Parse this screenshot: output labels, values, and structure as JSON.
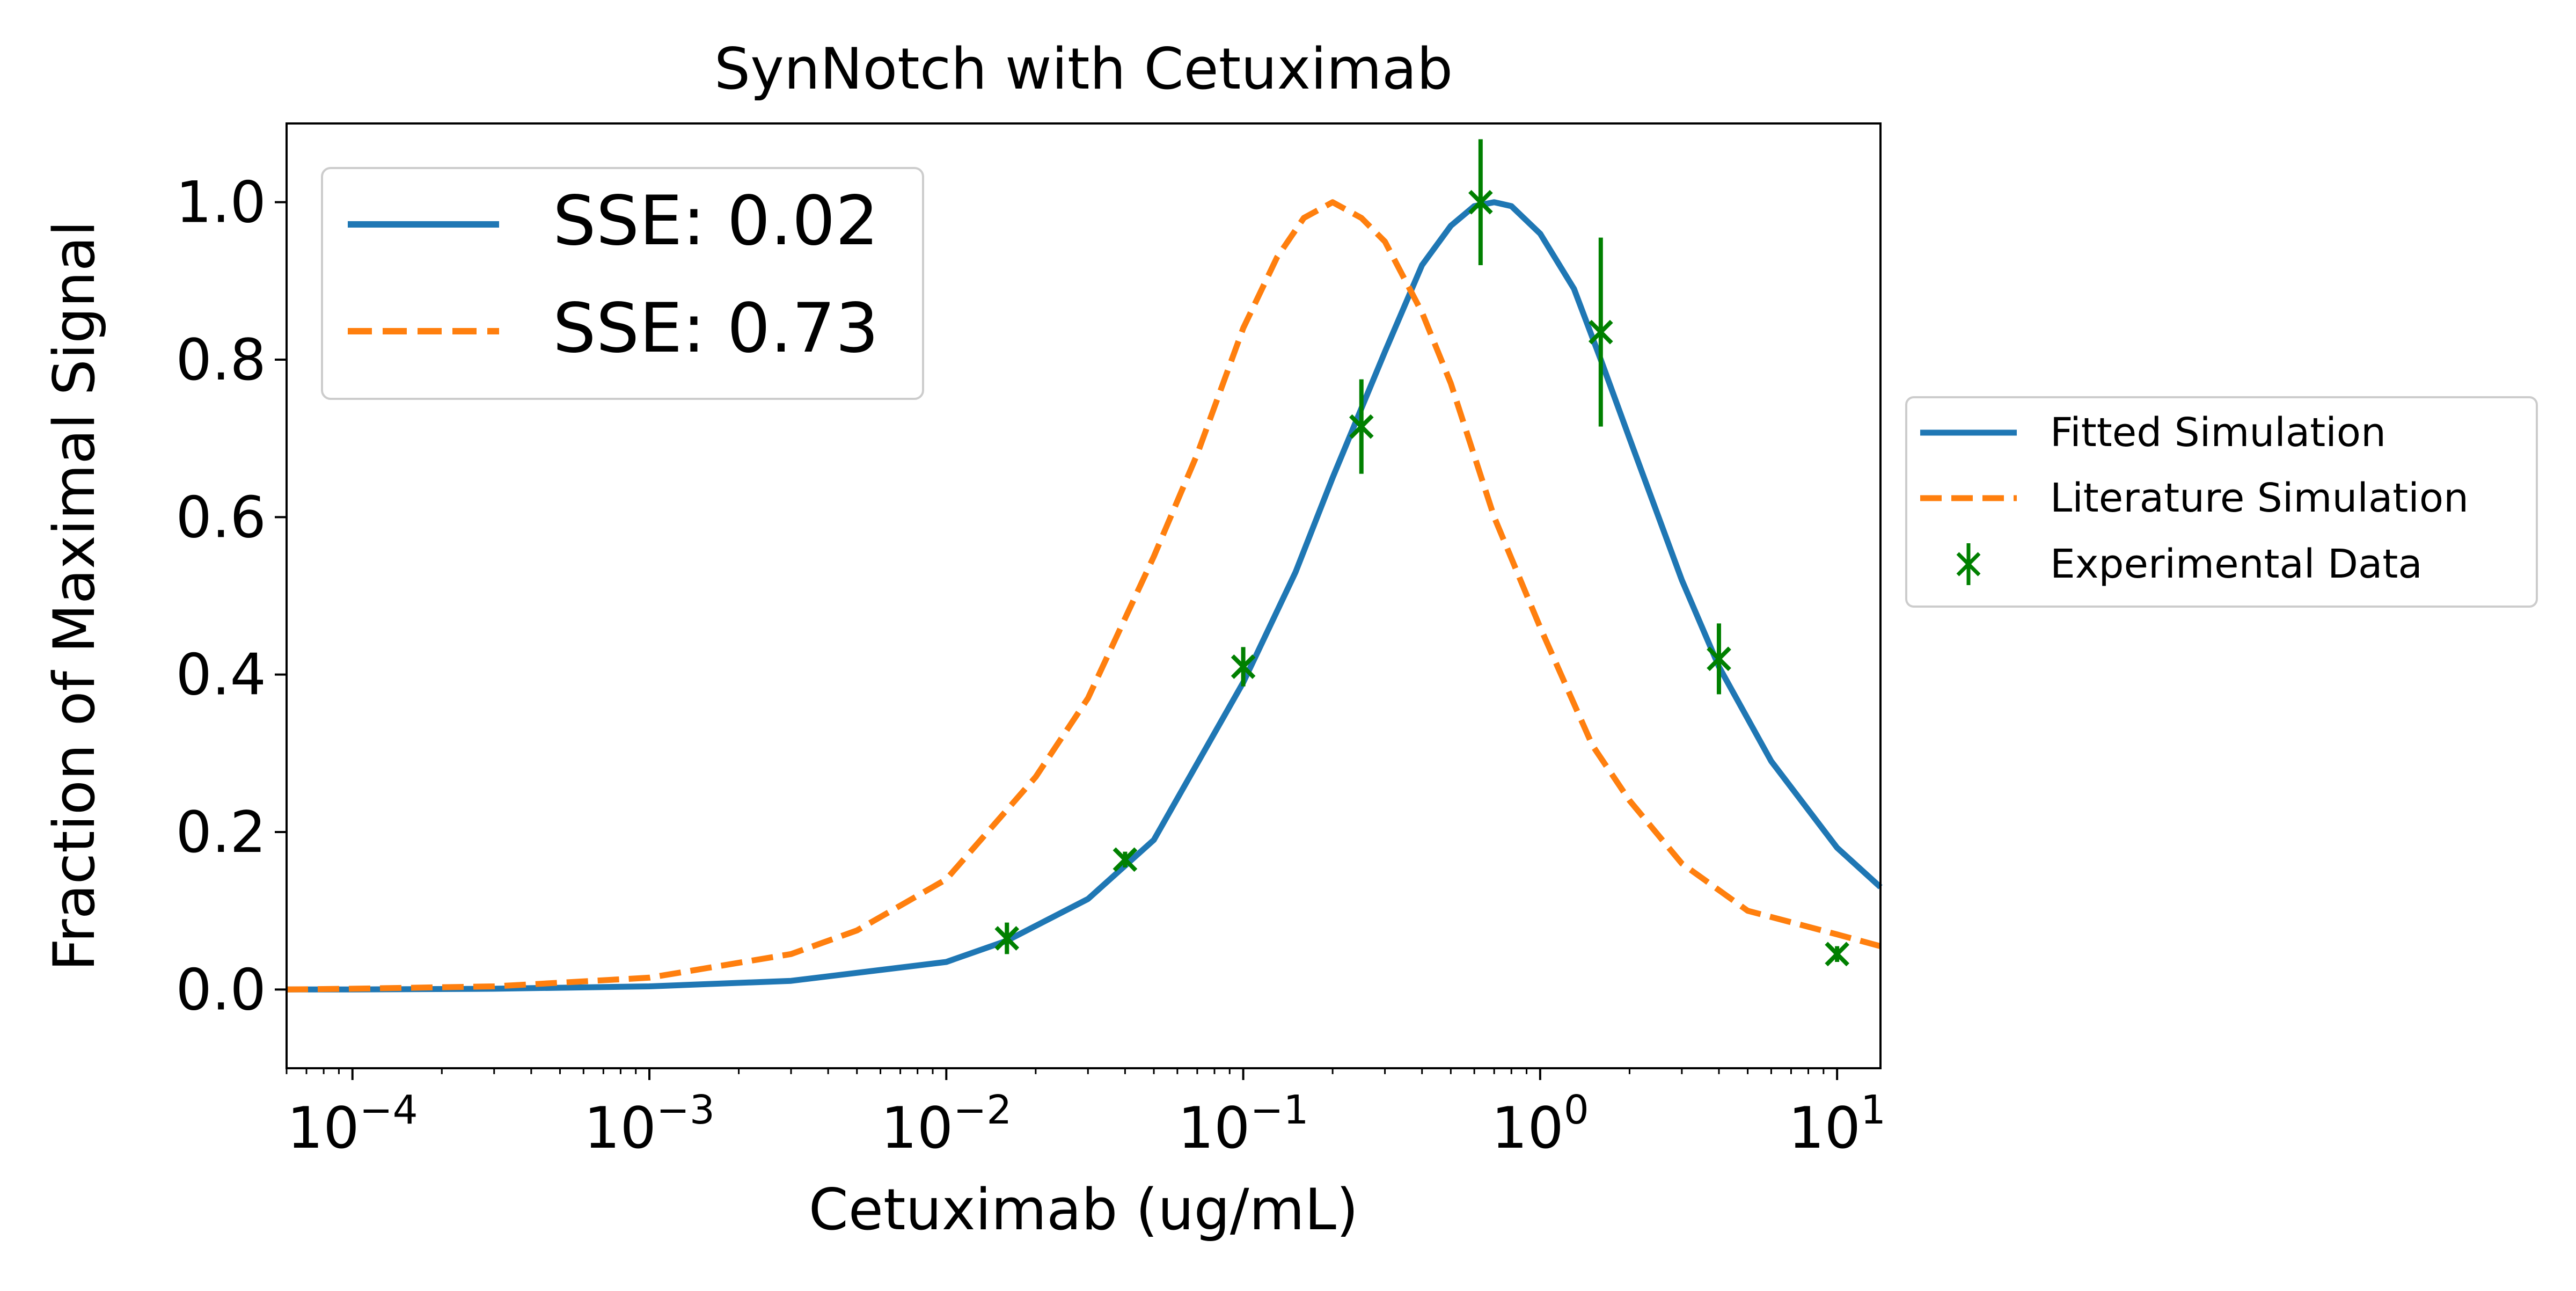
{
  "chart_data": {
    "type": "line",
    "title": "SynNotch with Cetuximab",
    "xlabel": "Cetuximab (ug/mL)",
    "ylabel": "Fraction of Maximal Signal",
    "x_scale": "log",
    "xlim": [
      6e-05,
      14
    ],
    "ylim": [
      -0.1,
      1.1
    ],
    "x_ticks": [
      {
        "value": 0.0001,
        "base": "10",
        "exp": "−4"
      },
      {
        "value": 0.001,
        "base": "10",
        "exp": "−3"
      },
      {
        "value": 0.01,
        "base": "10",
        "exp": "−2"
      },
      {
        "value": 0.1,
        "base": "10",
        "exp": "−1"
      },
      {
        "value": 1,
        "base": "10",
        "exp": "0"
      },
      {
        "value": 10,
        "base": "10",
        "exp": "1"
      }
    ],
    "y_ticks": [
      "0.0",
      "0.2",
      "0.4",
      "0.6",
      "0.8",
      "1.0"
    ],
    "grid": false,
    "series": [
      {
        "name": "Fitted Simulation",
        "style": "solid",
        "color": "#1f77b4",
        "x": [
          6e-05,
          0.0001,
          0.0003,
          0.001,
          0.003,
          0.01,
          0.016,
          0.03,
          0.05,
          0.1,
          0.15,
          0.2,
          0.3,
          0.4,
          0.5,
          0.6,
          0.7,
          0.8,
          1.0,
          1.3,
          1.6,
          2.0,
          3.0,
          4.0,
          6.0,
          10.0,
          14.0
        ],
        "y": [
          0.0,
          0.0,
          0.001,
          0.004,
          0.011,
          0.035,
          0.062,
          0.115,
          0.19,
          0.39,
          0.53,
          0.65,
          0.81,
          0.92,
          0.97,
          0.995,
          1.0,
          0.995,
          0.96,
          0.89,
          0.8,
          0.7,
          0.52,
          0.41,
          0.29,
          0.18,
          0.13
        ]
      },
      {
        "name": "Literature Simulation",
        "style": "dashed",
        "color": "#ff7f0e",
        "x": [
          6e-05,
          0.0001,
          0.0003,
          0.001,
          0.003,
          0.005,
          0.01,
          0.02,
          0.03,
          0.05,
          0.07,
          0.1,
          0.13,
          0.16,
          0.2,
          0.25,
          0.3,
          0.4,
          0.5,
          0.7,
          1.0,
          1.5,
          2.0,
          3.0,
          5.0,
          10.0,
          14.0
        ],
        "y": [
          0.0,
          0.001,
          0.004,
          0.015,
          0.045,
          0.075,
          0.14,
          0.27,
          0.37,
          0.55,
          0.68,
          0.84,
          0.93,
          0.98,
          1.0,
          0.98,
          0.95,
          0.86,
          0.77,
          0.6,
          0.46,
          0.31,
          0.24,
          0.16,
          0.1,
          0.07,
          0.055
        ]
      }
    ],
    "experimental": {
      "name": "Experimental Data",
      "color": "#008000",
      "marker": "x-with-errorbars",
      "points": [
        {
          "x": 0.016,
          "y": 0.065,
          "err": 0.02
        },
        {
          "x": 0.04,
          "y": 0.165,
          "err": 0.01
        },
        {
          "x": 0.1,
          "y": 0.41,
          "err": 0.025
        },
        {
          "x": 0.25,
          "y": 0.715,
          "err": 0.06
        },
        {
          "x": 0.63,
          "y": 1.0,
          "err": 0.08
        },
        {
          "x": 1.6,
          "y": 0.835,
          "err": 0.12
        },
        {
          "x": 4.0,
          "y": 0.42,
          "err": 0.045
        },
        {
          "x": 10.0,
          "y": 0.045,
          "err": 0.01
        }
      ]
    },
    "inner_legend": {
      "placement": "upper-left",
      "entries": [
        {
          "label": "SSE: 0.02",
          "color": "#1f77b4",
          "style": "solid"
        },
        {
          "label": "SSE: 0.73",
          "color": "#ff7f0e",
          "style": "dashed"
        }
      ]
    },
    "outer_legend": {
      "placement": "outside-right",
      "entries": [
        {
          "label": "Fitted Simulation",
          "color": "#1f77b4",
          "style": "solid"
        },
        {
          "label": "Literature Simulation",
          "color": "#ff7f0e",
          "style": "dashed"
        },
        {
          "label": "Experimental Data",
          "color": "#008000",
          "style": "marker"
        }
      ]
    }
  }
}
